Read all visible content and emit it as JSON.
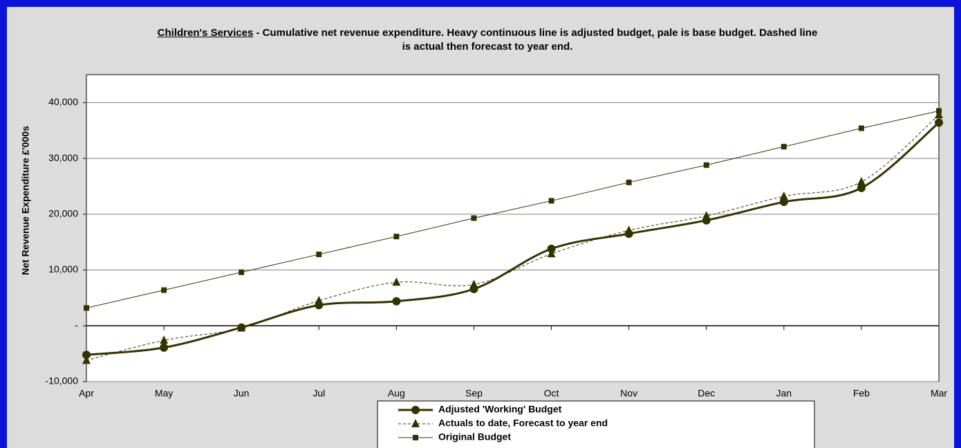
{
  "chart_data": {
    "type": "line",
    "title": "Children's Services",
    "subtitle": "- Cumulative net revenue expenditure. Heavy continuous line is adjusted budget, pale is base budget. Dashed line is actual then forecast to year end.",
    "y_label": "Net Revenue Expenditure £'000s",
    "categories": [
      "Apr",
      "May",
      "Jun",
      "Jul",
      "Aug",
      "Sep",
      "Oct",
      "Nov",
      "Dec",
      "Jan",
      "Feb",
      "Mar"
    ],
    "ylim": [
      -10000,
      45000
    ],
    "yticks": [
      {
        "value": -10000,
        "label": "-10,000"
      },
      {
        "value": 0,
        "label": "-"
      },
      {
        "value": 10000,
        "label": "10,000"
      },
      {
        "value": 20000,
        "label": "20,000"
      },
      {
        "value": 30000,
        "label": "30,000"
      },
      {
        "value": 40000,
        "label": "40,000"
      }
    ],
    "grid": true,
    "series": [
      {
        "name": "Adjusted 'Working' Budget",
        "color": "#333300",
        "style": "solid",
        "width": 3,
        "marker": "circle",
        "smooth": true,
        "values": [
          -5200,
          -3900,
          -300,
          3700,
          4400,
          6600,
          13800,
          16500,
          18900,
          22200,
          24700,
          36400
        ]
      },
      {
        "name": "Actuals to date, Forecast to year end",
        "color": "#333300",
        "style": "dashed",
        "width": 1,
        "marker": "triangle",
        "smooth": true,
        "values": [
          -6200,
          -2600,
          -400,
          4500,
          7800,
          7400,
          12900,
          17100,
          19700,
          23200,
          25800,
          37800
        ]
      },
      {
        "name": "Original Budget",
        "color": "#333300",
        "style": "solid",
        "width": 1,
        "marker": "square",
        "smooth": false,
        "values": [
          3200,
          6400,
          9600,
          12800,
          16000,
          19300,
          22400,
          25700,
          28800,
          32100,
          35400,
          38500
        ]
      }
    ]
  }
}
